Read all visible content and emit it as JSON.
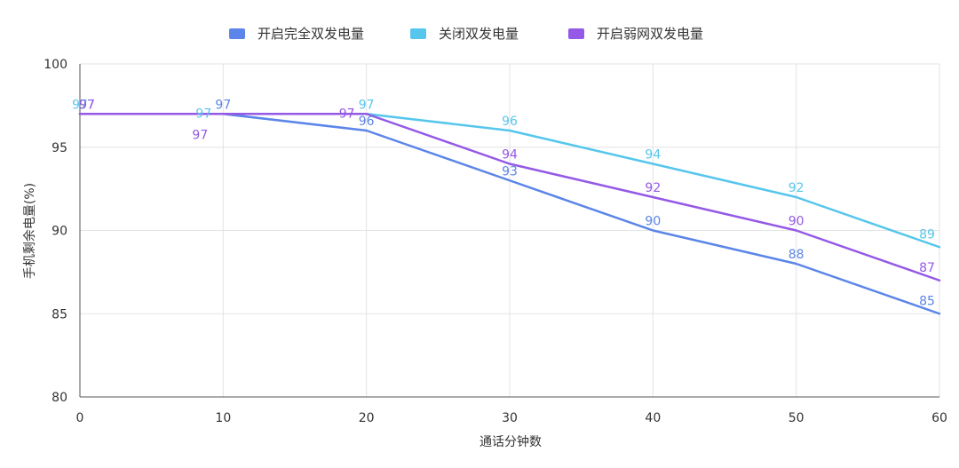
{
  "chart_data": {
    "type": "line",
    "xlabel": "通话分钟数",
    "ylabel": "手机剩余电量(%)",
    "xlim": [
      0,
      60
    ],
    "ylim": [
      80,
      100
    ],
    "x_ticks": [
      0,
      10,
      20,
      30,
      40,
      50,
      60
    ],
    "y_ticks": [
      80,
      85,
      90,
      95,
      100
    ],
    "grid": true,
    "legend_position": "top",
    "x": [
      0,
      10,
      20,
      30,
      40,
      50,
      60
    ],
    "series": [
      {
        "name": "开启完全双发电量",
        "color": "#5B85E8",
        "values": [
          97,
          97,
          96,
          93,
          90,
          88,
          85
        ]
      },
      {
        "name": "关闭双发电量",
        "color": "#56C6EC",
        "values": [
          97,
          97,
          97,
          96,
          94,
          92,
          89
        ]
      },
      {
        "name": "开启弱网双发电量",
        "color": "#9459E6",
        "values": [
          97,
          97,
          97,
          94,
          92,
          90,
          87
        ]
      }
    ]
  }
}
